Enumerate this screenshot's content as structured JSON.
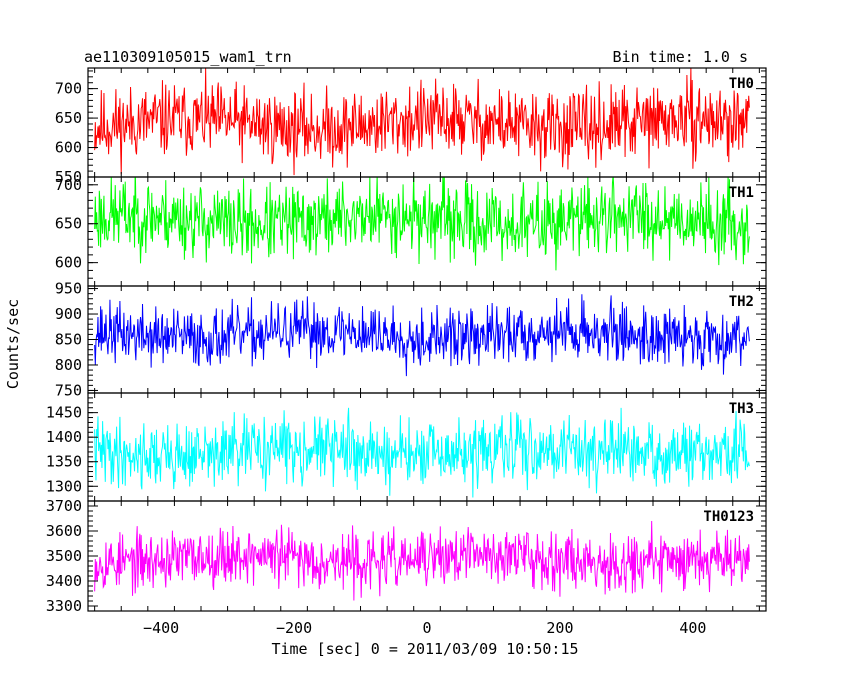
{
  "title_left": "ae110309105015_wam1_trn",
  "title_right": "Bin time: 1.0 s",
  "chart_data": {
    "type": "line",
    "title": "ae110309105015_wam1_trn",
    "bin_time": "Bin time: 1.0 s",
    "xlabel": "Time [sec] 0 = 2011/03/09 10:50:15",
    "ylabel": "Counts/sec",
    "xlim": [
      -510,
      510
    ],
    "x_range_data": [
      -500,
      485
    ],
    "x_ticks": [
      -400,
      -200,
      0,
      200,
      400
    ],
    "x_tick_labels": [
      "−400",
      "−200",
      "0",
      "200",
      "400"
    ],
    "panels": [
      {
        "name": "TH0",
        "color": "#ff0000",
        "ylim": [
          550,
          735
        ],
        "ticks": [
          550,
          600,
          650,
          700
        ],
        "tick_labels": [
          "550",
          "600",
          "650",
          "700"
        ],
        "mean": 640,
        "spread": 65,
        "seed": 11
      },
      {
        "name": "TH1",
        "color": "#00ff00",
        "ylim": [
          570,
          710
        ],
        "ticks": [
          600,
          650,
          700
        ],
        "tick_labels": [
          "600",
          "650",
          "700"
        ],
        "mean": 655,
        "spread": 50,
        "seed": 23
      },
      {
        "name": "TH2",
        "color": "#0000ff",
        "ylim": [
          745,
          955
        ],
        "ticks": [
          750,
          800,
          850,
          900,
          950
        ],
        "tick_labels": [
          "750",
          "800",
          "850",
          "900",
          "950"
        ],
        "mean": 860,
        "spread": 60,
        "seed": 37
      },
      {
        "name": "TH3",
        "color": "#00ffff",
        "ylim": [
          1270,
          1490
        ],
        "ticks": [
          1300,
          1350,
          1400,
          1450
        ],
        "tick_labels": [
          "1300",
          "1350",
          "1400",
          "1450"
        ],
        "mean": 1370,
        "spread": 70,
        "seed": 41
      },
      {
        "name": "TH0123",
        "color": "#ff00ff",
        "ylim": [
          3280,
          3720
        ],
        "ticks": [
          3300,
          3400,
          3500,
          3600,
          3700
        ],
        "tick_labels": [
          "3300",
          "3400",
          "3500",
          "3600",
          "3700"
        ],
        "mean": 3490,
        "spread": 120,
        "seed": 53
      }
    ]
  }
}
